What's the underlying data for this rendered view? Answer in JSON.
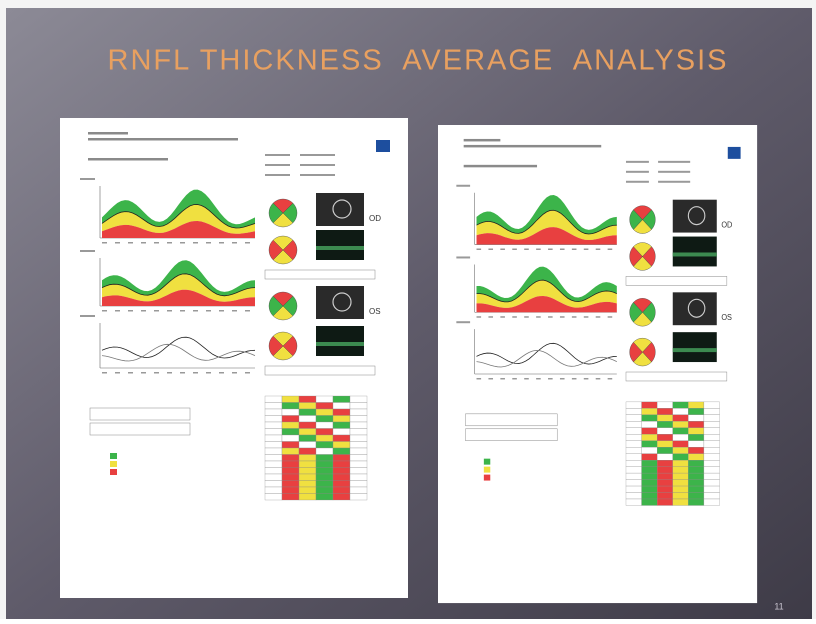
{
  "slide": {
    "title": "RNFL THICKNESS  AVERAGE  ANALYSIS",
    "page_number": "11"
  },
  "reports": [
    {
      "eye_labels": [
        "OD",
        "OS"
      ]
    },
    {
      "eye_labels": [
        "OD",
        "OS"
      ]
    }
  ]
}
